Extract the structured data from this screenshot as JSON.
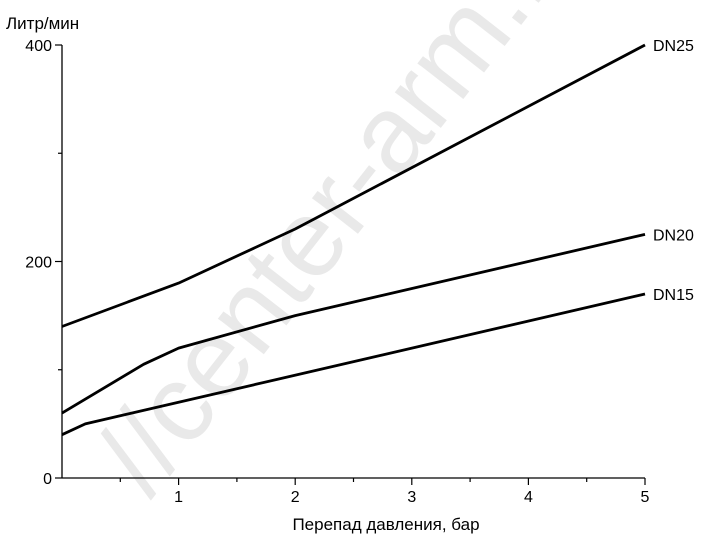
{
  "chart_data": {
    "type": "line",
    "title": "",
    "xlabel": "Перепад давления, бар",
    "ylabel": "Литр/мин",
    "xlim": [
      0,
      5
    ],
    "ylim": [
      0,
      400
    ],
    "x_ticks": [
      1,
      2,
      3,
      4,
      5
    ],
    "y_ticks": [
      0,
      200,
      400
    ],
    "grid": false,
    "legend": "none",
    "series": [
      {
        "name": "DN25",
        "x": [
          0,
          1,
          2,
          5
        ],
        "y": [
          140,
          180,
          230,
          400
        ],
        "color": "#000000"
      },
      {
        "name": "DN20",
        "x": [
          0,
          0.7,
          1,
          2,
          5
        ],
        "y": [
          60,
          105,
          120,
          150,
          225
        ],
        "color": "#000000"
      },
      {
        "name": "DN15",
        "x": [
          0,
          0.2,
          5
        ],
        "y": [
          40,
          50,
          170
        ],
        "color": "#000000"
      }
    ]
  },
  "watermark": "//center-arm.ru"
}
